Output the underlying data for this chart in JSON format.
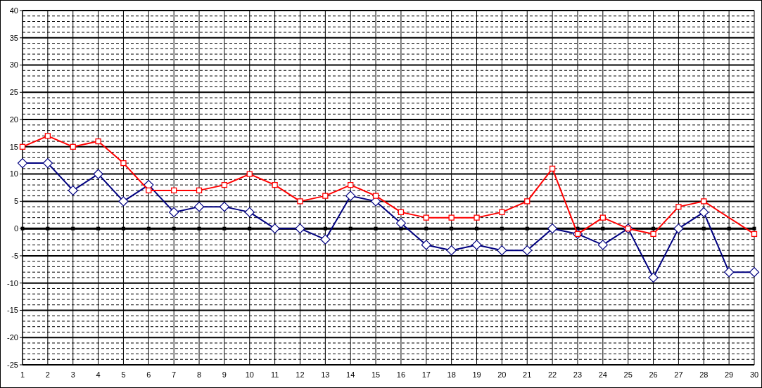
{
  "chart_data": {
    "type": "line",
    "x": [
      1,
      2,
      3,
      4,
      5,
      6,
      7,
      8,
      9,
      10,
      11,
      12,
      13,
      14,
      15,
      16,
      17,
      18,
      19,
      20,
      21,
      22,
      23,
      24,
      25,
      26,
      27,
      28,
      29,
      30
    ],
    "series": [
      {
        "color": "#000000",
        "marker": "square",
        "values": [
          0,
          0,
          0,
          0,
          0,
          0,
          0,
          0,
          0,
          0,
          0,
          0,
          0,
          0,
          0,
          0,
          0,
          0,
          0,
          0,
          0,
          0,
          0,
          0,
          0,
          0,
          0,
          0,
          0,
          0
        ]
      },
      {
        "color": "#000080",
        "marker": "diamond",
        "values": [
          12,
          12,
          7,
          10,
          5,
          8,
          3,
          4,
          4,
          3,
          0,
          0,
          -2,
          6,
          5,
          1,
          -3,
          -4,
          -3,
          -4,
          -4,
          0,
          -1,
          -3,
          0,
          -9,
          0,
          3,
          -8,
          -8
        ]
      },
      {
        "color": "#ff0000",
        "marker": "square",
        "values": [
          15,
          17,
          15,
          16,
          12,
          7,
          7,
          7,
          8,
          10,
          8,
          5,
          6,
          8,
          6,
          3,
          2,
          2,
          2,
          3,
          5,
          11,
          -1,
          2,
          0,
          -1,
          4,
          5,
          null,
          -1
        ]
      }
    ],
    "xlim": [
      1,
      30
    ],
    "xticks": [
      1,
      2,
      3,
      4,
      5,
      6,
      7,
      8,
      9,
      10,
      11,
      12,
      13,
      14,
      15,
      16,
      17,
      18,
      19,
      20,
      21,
      22,
      23,
      24,
      25,
      26,
      27,
      28,
      29,
      30
    ],
    "ylim": [
      -25,
      40
    ],
    "yticks": [
      -25,
      -20,
      -15,
      -10,
      -5,
      0,
      5,
      10,
      15,
      20,
      25,
      30,
      35,
      40
    ],
    "grid": true
  }
}
